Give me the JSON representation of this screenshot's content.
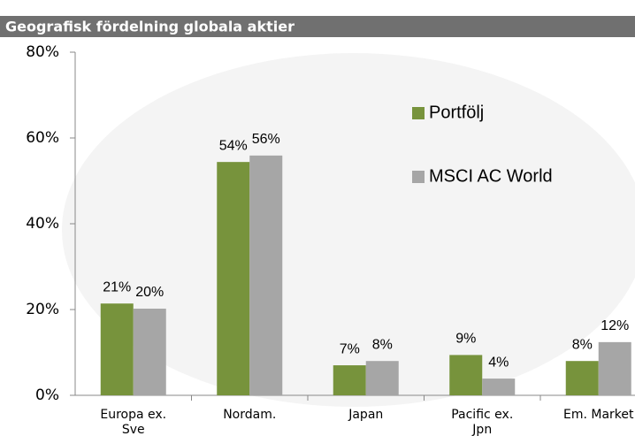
{
  "chart_data": {
    "type": "bar",
    "title": "Geografisk fördelning globala aktier",
    "categories": [
      "Europa ex. Sve",
      "Nordam.",
      "Japan",
      "Pacific ex. Jpn",
      "Em. Market"
    ],
    "series": [
      {
        "name": "Portfölj",
        "color": "#77933c",
        "values": [
          21.4,
          54.4,
          7.0,
          9.4,
          8.0
        ],
        "value_labels": [
          "21%",
          "54%",
          "7%",
          "9%",
          "8%"
        ]
      },
      {
        "name": "MSCI AC World",
        "color": "#a6a6a6",
        "values": [
          20.2,
          55.9,
          8.0,
          3.9,
          12.4
        ],
        "value_labels": [
          "20%",
          "56%",
          "8%",
          "4%",
          "12%"
        ]
      }
    ],
    "ylim": [
      0,
      80
    ],
    "yticks": [
      {
        "value": 0,
        "label": "0%"
      },
      {
        "value": 20,
        "label": "20%"
      },
      {
        "value": 40,
        "label": "40%"
      },
      {
        "value": 60,
        "label": "60%"
      },
      {
        "value": 80,
        "label": "80%"
      }
    ],
    "legend": "upper right"
  }
}
